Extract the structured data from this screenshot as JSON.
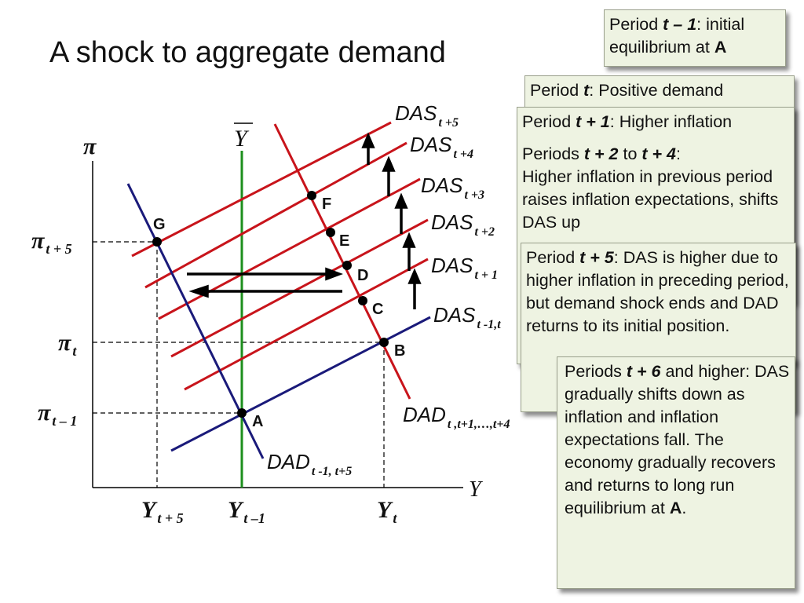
{
  "title": "A shock to aggregate demand",
  "diagram": {
    "y_axis_label": "π",
    "x_axis_label": "Y",
    "potential_output_label": "Y",
    "x_ticks": [
      {
        "base": "Y",
        "sub": "t + 5"
      },
      {
        "base": "Y",
        "sub": "t –1"
      },
      {
        "base": "Y",
        "sub": "t"
      }
    ],
    "y_ticks": [
      {
        "base": "π",
        "sub": "t + 5"
      },
      {
        "base": "π",
        "sub": "t"
      },
      {
        "base": "π",
        "sub": "t – 1"
      }
    ],
    "points": [
      "A",
      "B",
      "C",
      "D",
      "E",
      "F",
      "G"
    ],
    "curve_labels": {
      "das_base": "DAS",
      "das_subs": [
        "t +5",
        "t +4",
        "t +3",
        "t +2",
        "t + 1",
        "t -1,t"
      ],
      "dad_base": "DAD",
      "dad_shift_sub": "t ,t+1,…,t+4",
      "dad_initial_sub": "t -1, t+5"
    },
    "colors": {
      "das": "#c8141b",
      "dad_shift": "#c8141b",
      "dad_initial": "#1a1a7a",
      "potential": "#1d8f1d",
      "axes": "#000000"
    }
  },
  "callouts": {
    "c1": {
      "pre": "Period ",
      "t": "t – 1",
      "mid": ": initial",
      "line2": "equilibrium at ",
      "pt": "A"
    },
    "c2": {
      "pre": "Period ",
      "t": "t",
      "mid": ": Positive demand"
    },
    "c3": {
      "pre": "Period ",
      "t": "t + 1",
      "mid": ": Higher inflation"
    },
    "c4": {
      "pre": "Periods ",
      "t1": "t + 2",
      "to": " to ",
      "t2": "t + 4",
      "colon": ":",
      "body": "Higher inflation in previous period raises inflation expectations, shifts DAS up"
    },
    "c5": {
      "pre": "Period ",
      "t": "t + 5",
      "body": ": DAS is higher due to higher inflation in preceding period, but demand shock ends and DAD returns to its initial position."
    },
    "c6": {
      "pre": "Periods ",
      "t": "t + 6",
      "body": " and higher: DAS gradually shifts down as inflation and inflation expectations fall. The economy gradually recovers and returns to long run equilibrium at ",
      "pt": "A",
      "end": "."
    }
  }
}
